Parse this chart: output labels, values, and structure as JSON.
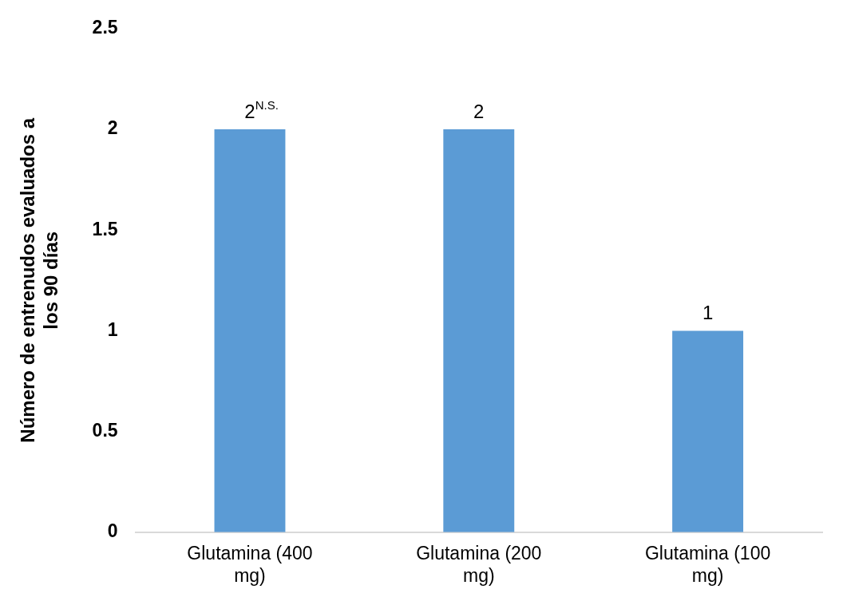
{
  "chart_data": {
    "type": "bar",
    "ylabel": "Número de entrenudos evaluados a los 90 días",
    "categories": [
      "Glutamina (400 mg)",
      "Glutamina (200 mg)",
      "Glutamina (100 mg)"
    ],
    "values": [
      2,
      2,
      1
    ],
    "color": "#5b9bd5",
    "value_labels": [
      "2$^{N.S.}$",
      "2",
      "1"
    ],
    "ylim": [
      0,
      2.5
    ],
    "yticks": [
      0,
      0.5,
      1,
      1.5,
      2,
      2.5
    ],
    "grid": false,
    "legend": false
  }
}
